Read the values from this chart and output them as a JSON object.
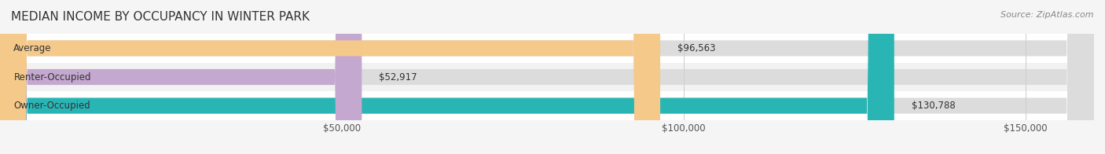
{
  "title": "MEDIAN INCOME BY OCCUPANCY IN WINTER PARK",
  "source": "Source: ZipAtlas.com",
  "categories": [
    "Owner-Occupied",
    "Renter-Occupied",
    "Average"
  ],
  "values": [
    130788,
    52917,
    96563
  ],
  "bar_colors": [
    "#2ab5b5",
    "#c4a8d0",
    "#f5c98a"
  ],
  "bar_bg_color": "#e8e8e8",
  "value_labels": [
    "$130,788",
    "$52,917",
    "$96,563"
  ],
  "xlim": [
    0,
    160000
  ],
  "xticks": [
    0,
    50000,
    100000,
    150000
  ],
  "xtick_labels": [
    "$50,000",
    "$100,000",
    "$150,000"
  ],
  "title_fontsize": 11,
  "label_fontsize": 8.5,
  "value_fontsize": 8.5,
  "source_fontsize": 8,
  "bar_height": 0.55,
  "bg_color": "#f5f5f5",
  "row_bg_colors": [
    "#ffffff",
    "#f0f0f0",
    "#ffffff"
  ]
}
